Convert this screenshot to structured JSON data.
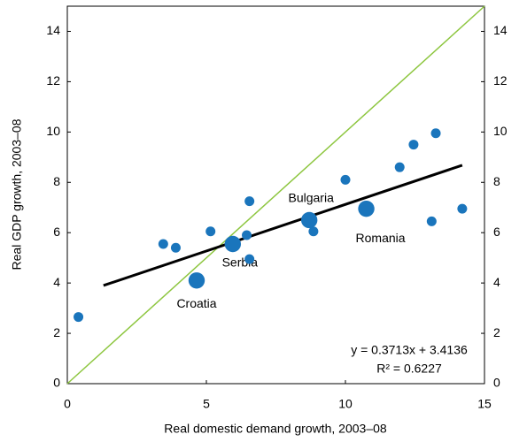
{
  "chart_data": {
    "type": "scatter",
    "x_label": "Real domestic demand growth, 2003–08",
    "y_label": "Real GDP growth, 2003–08",
    "annotations": [
      "y = 0.3713x + 3.4136",
      "R² = 0.6227"
    ],
    "x": [
      0.4,
      3.45,
      3.9,
      5.15,
      4.65,
      5.95,
      6.45,
      6.55,
      6.55,
      8.7,
      8.85,
      10.0,
      10.75,
      11.95,
      12.45,
      13.1,
      13.25,
      14.2
    ],
    "values": [
      2.65,
      5.55,
      5.4,
      6.05,
      4.1,
      5.55,
      5.9,
      7.25,
      4.95,
      6.5,
      6.05,
      8.1,
      6.95,
      8.6,
      9.5,
      6.45,
      9.95,
      6.95
    ],
    "sizes": [
      1,
      1,
      1,
      1,
      2.8,
      2.8,
      1,
      1,
      1,
      2.8,
      1,
      1,
      2.8,
      1,
      1,
      1,
      1,
      1
    ],
    "labels": [
      null,
      null,
      null,
      null,
      "Croatia",
      "Serbia",
      null,
      null,
      null,
      "Bulgaria",
      null,
      null,
      "Romania",
      null,
      null,
      null,
      null,
      null
    ],
    "color": "#1a75bc",
    "trendline": {
      "x": [
        1.3,
        14.2
      ],
      "values": [
        3.9,
        8.68
      ],
      "color": "#000000"
    },
    "reference_line": {
      "x": [
        0,
        15
      ],
      "values": [
        0,
        15
      ],
      "color": "#8dc63f"
    },
    "xlim": [
      0,
      15
    ],
    "ylim": [
      0,
      15
    ],
    "xticks": [
      0,
      5,
      10,
      15
    ],
    "yticks": [
      0,
      2,
      4,
      6,
      8,
      10,
      12,
      14
    ],
    "right_axis": true,
    "grid": false
  }
}
